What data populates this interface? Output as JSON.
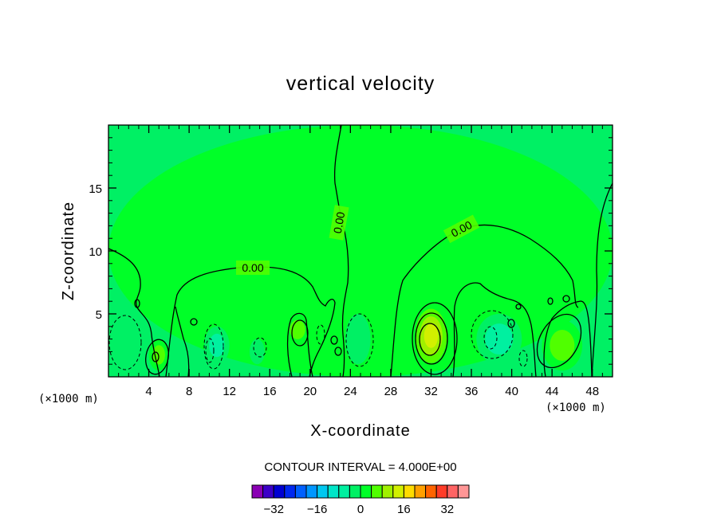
{
  "chart_data": {
    "type": "heatmap",
    "title": "vertical velocity",
    "xlabel": "X-coordinate",
    "ylabel": "Z-coordinate",
    "x_unit": "(×1000 m)",
    "z_unit": "(×1000 m)",
    "xlim": [
      0,
      50
    ],
    "ylim": [
      0,
      20
    ],
    "x_ticks": [
      4,
      8,
      12,
      16,
      20,
      24,
      28,
      32,
      36,
      40,
      44,
      48
    ],
    "y_ticks": [
      5,
      10,
      15
    ],
    "contour_interval_text": "CONTOUR INTERVAL = 4.000E+00",
    "contour_interval": 4.0,
    "zero_contour_label": "0.00",
    "colorbar": {
      "levels": [
        -36,
        -32,
        -28,
        -24,
        -20,
        -16,
        -12,
        -8,
        -4,
        0,
        4,
        8,
        12,
        16,
        20,
        24,
        28,
        32,
        36
      ],
      "colors": [
        "#8a00b4",
        "#3c00c8",
        "#0000d2",
        "#0028f0",
        "#0060ff",
        "#0096ff",
        "#00c8f0",
        "#00e6c8",
        "#00f0a0",
        "#00f064",
        "#00ff28",
        "#50ff00",
        "#a0f000",
        "#d2f000",
        "#ffdc00",
        "#ffa000",
        "#ff6400",
        "#ff3c28",
        "#ff6464",
        "#ff9696"
      ],
      "tick_labels": [
        "−32",
        "−16",
        "0",
        "16",
        "32"
      ],
      "tick_values": [
        -32,
        -16,
        0,
        16,
        32
      ]
    },
    "background_level_color": "#00f064",
    "regions": [
      {
        "sign": "positive",
        "x": [
          0,
          50
        ],
        "z": [
          0,
          20
        ],
        "max": 4
      },
      {
        "sign": "positive",
        "x": [
          4,
          6
        ],
        "z": [
          0.5,
          3
        ],
        "max": 6
      },
      {
        "sign": "positive",
        "x": [
          17.5,
          20
        ],
        "z": [
          2.5,
          5
        ],
        "max": 6
      },
      {
        "sign": "positive",
        "x": [
          30,
          34
        ],
        "z": [
          0.5,
          6
        ],
        "max": 14
      },
      {
        "sign": "positive",
        "x": [
          43,
          47
        ],
        "z": [
          0.5,
          4.5
        ],
        "max": 8
      },
      {
        "sign": "negative",
        "x": [
          0,
          3
        ],
        "z": [
          0.5,
          5
        ],
        "min": -4
      },
      {
        "sign": "negative",
        "x": [
          9.5,
          12
        ],
        "z": [
          1,
          4
        ],
        "min": -8
      },
      {
        "sign": "negative",
        "x": [
          14,
          15.5
        ],
        "z": [
          1,
          3
        ],
        "min": -4
      },
      {
        "sign": "negative",
        "x": [
          23.5,
          26
        ],
        "z": [
          1,
          5
        ],
        "min": -4
      },
      {
        "sign": "negative",
        "x": [
          36.5,
          41
        ],
        "z": [
          1,
          5
        ],
        "min": -8
      }
    ]
  }
}
